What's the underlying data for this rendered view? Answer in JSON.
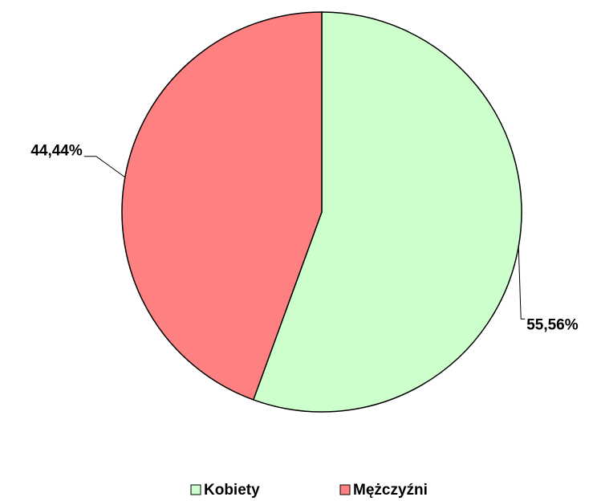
{
  "chart_data": {
    "type": "pie",
    "categories": [
      "Kobiety",
      "Mężczyźni"
    ],
    "values": [
      55.56,
      44.44
    ],
    "value_labels": [
      "55,56%",
      "44,44%"
    ],
    "colors": [
      "#ccffcc",
      "#ff8080"
    ],
    "legend": "bottom"
  }
}
